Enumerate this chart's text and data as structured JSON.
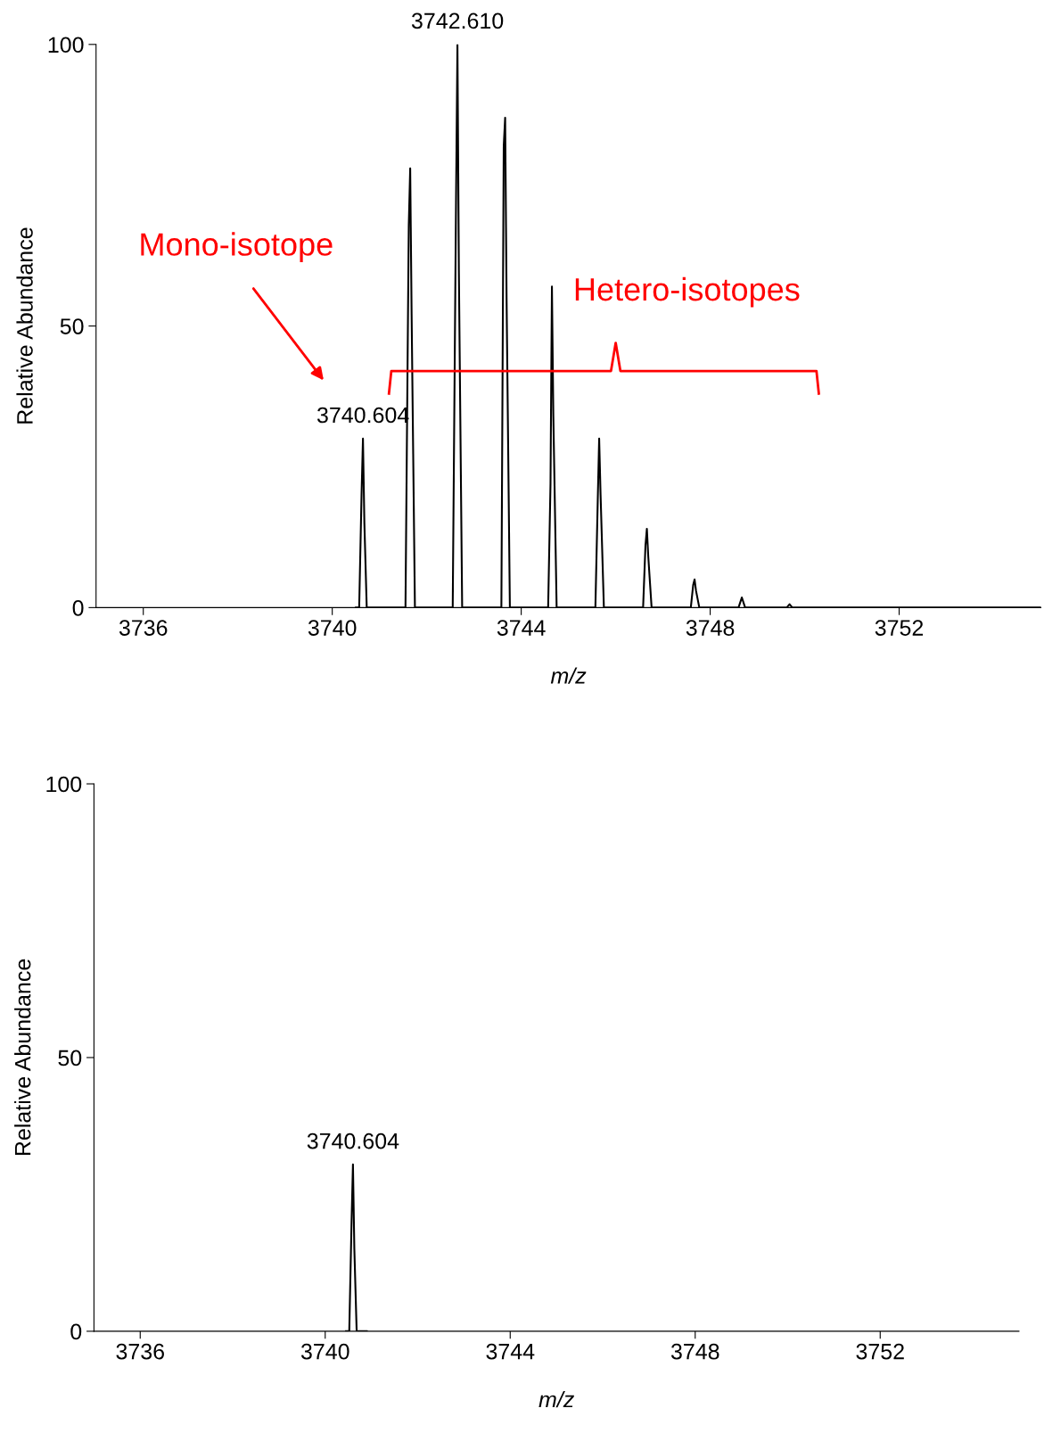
{
  "chart_data": [
    {
      "type": "line",
      "xlabel": "m/z",
      "ylabel": "Relative Abundance",
      "xlim": [
        3735,
        3755
      ],
      "ylim": [
        0,
        100
      ],
      "xticks": [
        3736,
        3740,
        3744,
        3748,
        3752
      ],
      "yticks": [
        0,
        50,
        100
      ],
      "series": [
        {
          "color": "#000000",
          "x": [
            3740.5,
            3740.57,
            3740.62,
            3740.65,
            3740.68,
            3740.73,
            3741.55,
            3741.62,
            3741.65,
            3741.68,
            3741.75,
            3742.55,
            3742.62,
            3742.65,
            3742.68,
            3742.75,
            3743.58,
            3743.63,
            3743.66,
            3743.69,
            3743.76,
            3744.57,
            3744.62,
            3744.65,
            3744.68,
            3744.75,
            3745.57,
            3745.62,
            3745.65,
            3745.68,
            3745.75,
            3746.58,
            3746.63,
            3746.66,
            3746.69,
            3746.76,
            3747.59,
            3747.64,
            3747.67,
            3747.7,
            3747.77,
            3748.6,
            3748.67,
            3748.74,
            3749.62,
            3749.68,
            3749.74,
            3755
          ],
          "values": [
            0,
            0,
            20,
            30,
            15,
            0,
            0,
            68,
            78,
            52,
            0,
            0,
            72,
            100,
            60,
            0,
            0,
            82,
            87,
            55,
            0,
            0,
            22,
            57,
            34,
            0,
            0,
            19,
            30,
            20,
            0,
            0,
            11,
            14,
            9,
            0,
            0,
            4,
            5,
            3,
            0,
            0,
            1.8,
            0,
            0,
            0.6,
            0,
            0
          ]
        }
      ],
      "annotations": [
        {
          "text": "3740.604",
          "x": 3740.65,
          "y": 30
        },
        {
          "text": "3742.610",
          "x": 3742.65,
          "y": 100
        },
        "Mono-isotope",
        "Hetero-isotopes"
      ]
    },
    {
      "type": "line",
      "xlabel": "m/z",
      "ylabel": "Relative Abundance",
      "xlim": [
        3735,
        3755
      ],
      "ylim": [
        0,
        100
      ],
      "xticks": [
        3736,
        3740,
        3744,
        3748,
        3752
      ],
      "yticks": [
        0,
        50,
        100
      ],
      "series": [
        {
          "color": "#000000",
          "x": [
            3740.45,
            3740.52,
            3740.57,
            3740.6,
            3740.63,
            3740.68,
            3740.9
          ],
          "values": [
            0,
            0,
            20,
            30.5,
            15,
            0,
            0
          ]
        }
      ],
      "annotations": [
        {
          "text": "3740.604",
          "x": 3740.6,
          "y": 30.5
        }
      ]
    }
  ]
}
